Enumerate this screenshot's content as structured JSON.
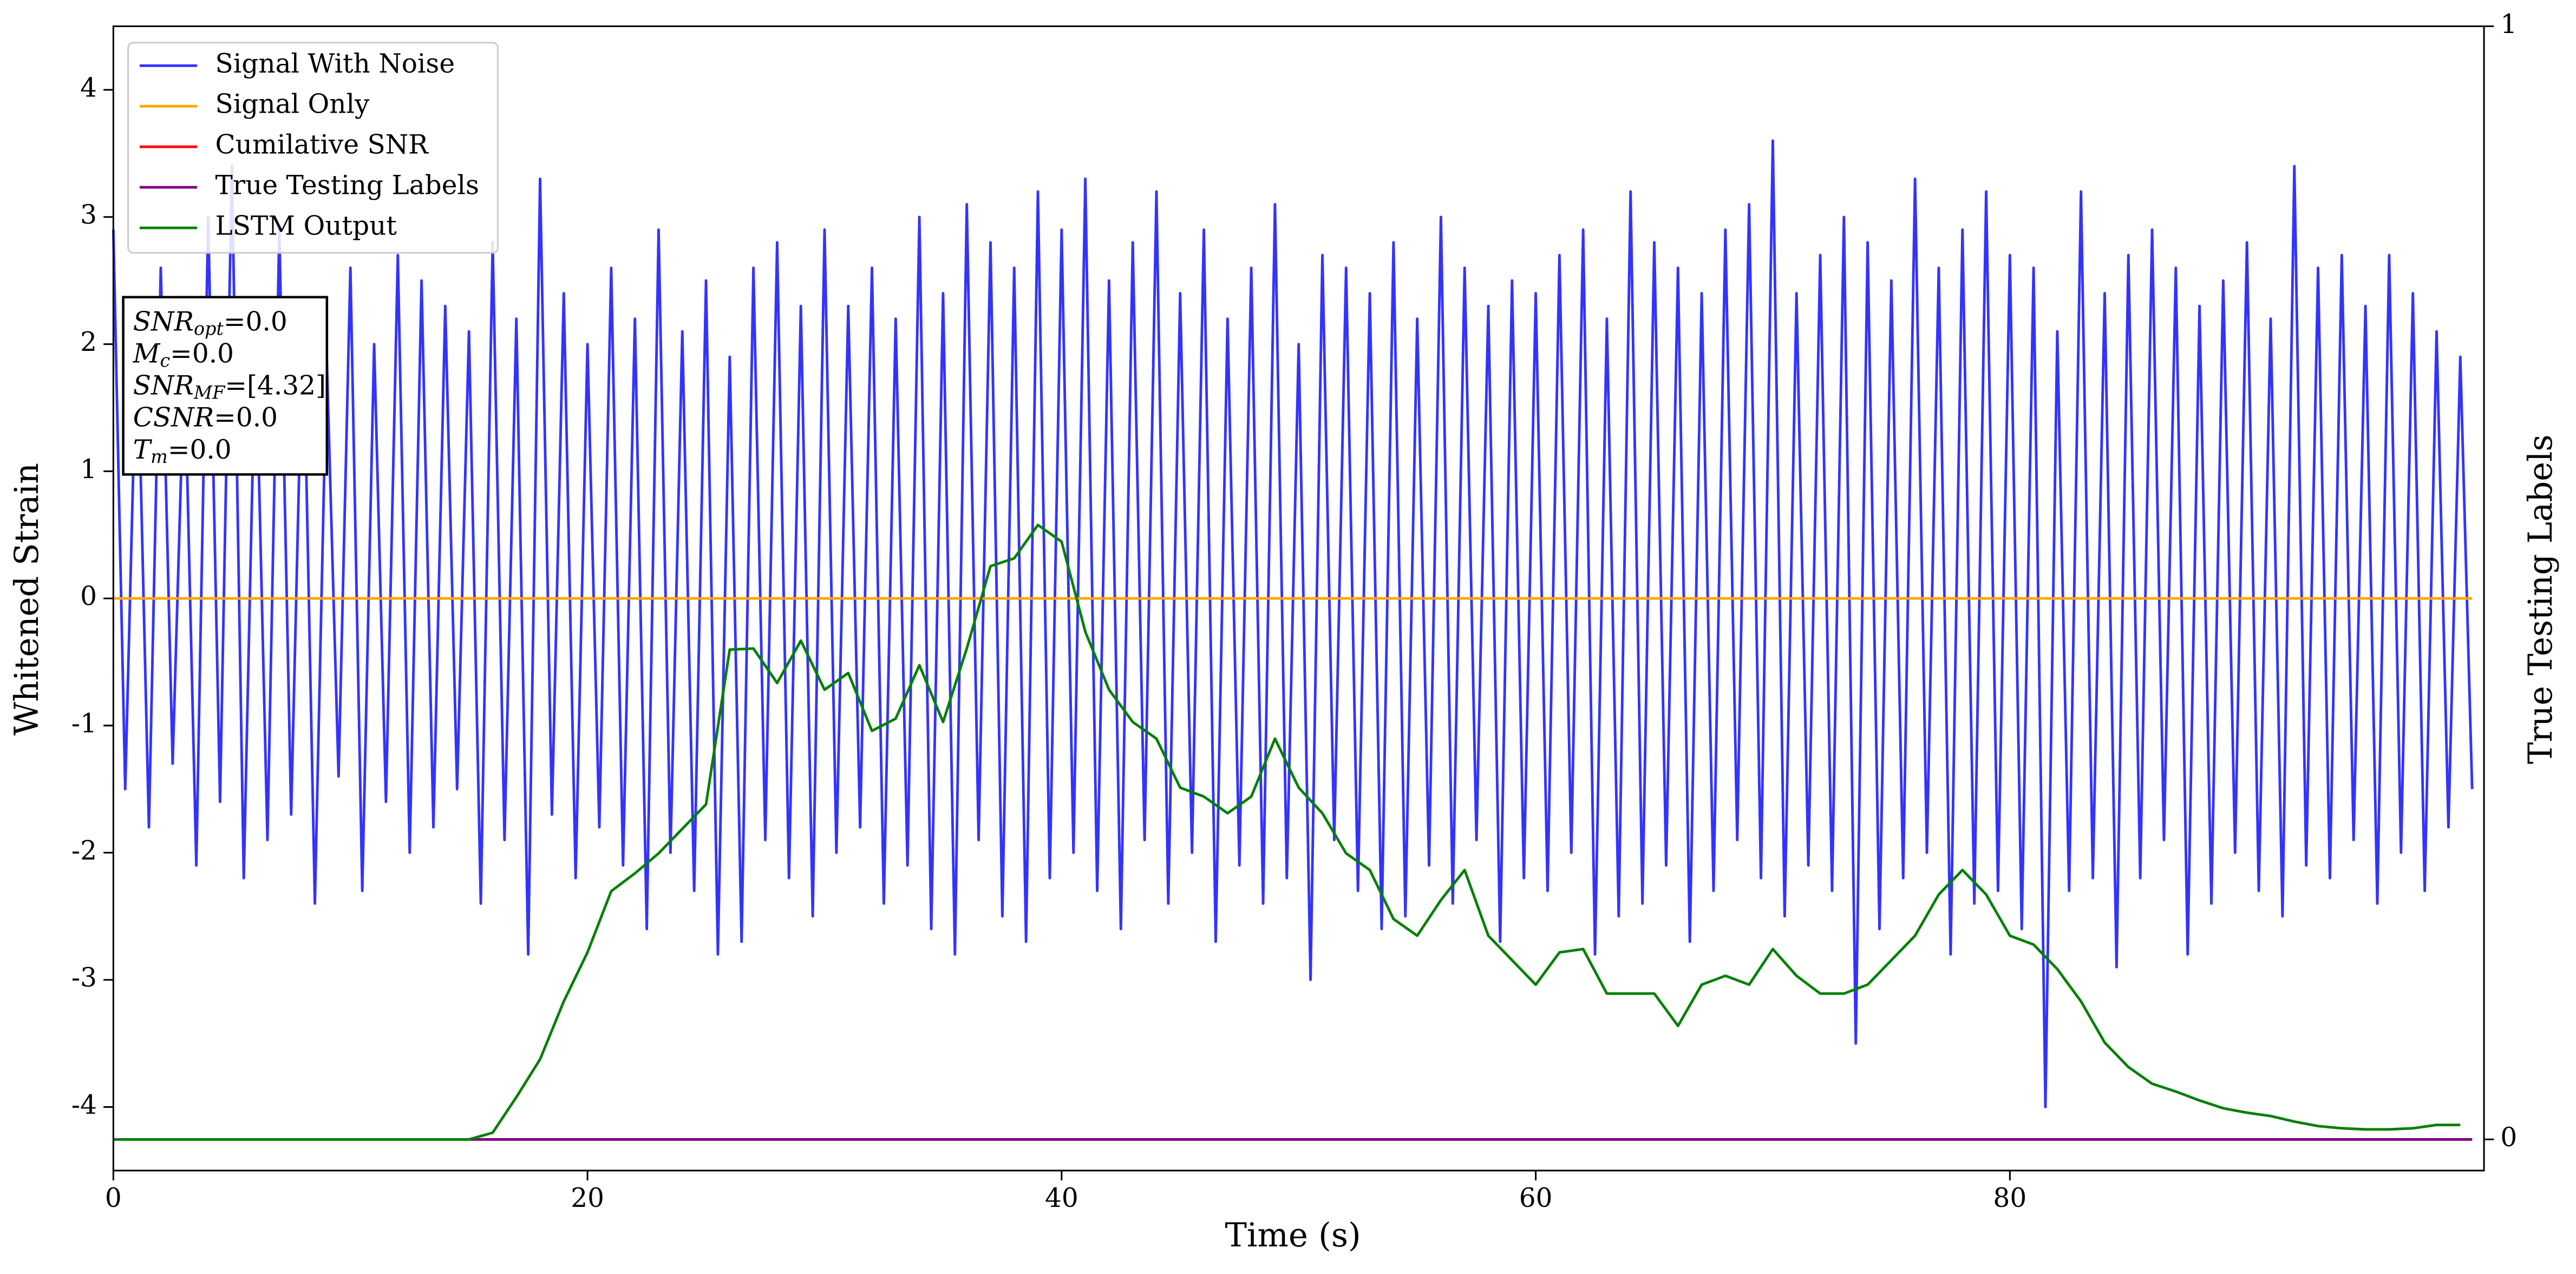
{
  "chart_data": {
    "type": "line",
    "xlabel": "Time (s)",
    "ylabel": "Whitened Strain",
    "y2label": "True Testing Labels",
    "xlim": [
      0,
      100
    ],
    "xticks": [
      0,
      20,
      40,
      60,
      80
    ],
    "ylim": [
      -4.5,
      4.5
    ],
    "yticks": [
      -4,
      -3,
      -2,
      -1,
      0,
      1,
      2,
      3,
      4
    ],
    "y2lim": [
      -0.028,
      1
    ],
    "y2ticks": [
      0,
      1
    ],
    "legend": "upper left",
    "annotations": [
      {
        "symbol": "SNR",
        "subscript": "opt",
        "text": "=0.0"
      },
      {
        "symbol": "M",
        "subscript": "c",
        "text": "=0.0"
      },
      {
        "symbol": "SNR",
        "subscript": "MF",
        "text": "=[4.32]"
      },
      {
        "symbol": "CSNR",
        "text": "=0.0"
      },
      {
        "symbol": "T",
        "subscript": "m",
        "text": "=0.0"
      }
    ],
    "series": [
      {
        "name": "Signal With Noise",
        "color": "#3333ff",
        "x": [
          0,
          0.5,
          1,
          1.5,
          2,
          2.5,
          3,
          3.5,
          4,
          4.5,
          5,
          5.5,
          6,
          6.5,
          7,
          7.5,
          8,
          8.5,
          9,
          9.5,
          10,
          10.5,
          11,
          11.5,
          12,
          12.5,
          13,
          13.5,
          14,
          14.5,
          15,
          15.5,
          16,
          16.5,
          17,
          17.5,
          18,
          18.5,
          19,
          19.5,
          20,
          20.5,
          21,
          21.5,
          22,
          22.5,
          23,
          23.5,
          24,
          24.5,
          25,
          25.5,
          26,
          26.5,
          27,
          27.5,
          28,
          28.5,
          29,
          29.5,
          30,
          30.5,
          31,
          31.5,
          32,
          32.5,
          33,
          33.5,
          34,
          34.5,
          35,
          35.5,
          36,
          36.5,
          37,
          37.5,
          38,
          38.5,
          39,
          39.5,
          40,
          40.5,
          41,
          41.5,
          42,
          42.5,
          43,
          43.5,
          44,
          44.5,
          45,
          45.5,
          46,
          46.5,
          47,
          47.5,
          48,
          48.5,
          49,
          49.5,
          50,
          50.5,
          51,
          51.5,
          52,
          52.5,
          53,
          53.5,
          54,
          54.5,
          55,
          55.5,
          56,
          56.5,
          57,
          57.5,
          58,
          58.5,
          59,
          59.5,
          60,
          60.5,
          61,
          61.5,
          62,
          62.5,
          63,
          63.5,
          64,
          64.5,
          65,
          65.5,
          66,
          66.5,
          67,
          67.5,
          68,
          68.5,
          69,
          69.5,
          70,
          70.5,
          71,
          71.5,
          72,
          72.5,
          73,
          73.5,
          74,
          74.5,
          75,
          75.5,
          76,
          76.5,
          77,
          77.5,
          78,
          78.5,
          79,
          79.5,
          80,
          80.5,
          81,
          81.5,
          82,
          82.5,
          83,
          83.5,
          84,
          84.5,
          85,
          85.5,
          86,
          86.5,
          87,
          87.5,
          88,
          88.5,
          89,
          89.5,
          90,
          90.5,
          91,
          91.5,
          92,
          92.5,
          93,
          93.5,
          94,
          94.5,
          95,
          95.5,
          96,
          96.5,
          97,
          97.5,
          98,
          98.5,
          99,
          99.5
        ],
        "values": [
          2.9,
          -1.5,
          2.2,
          -1.8,
          2.6,
          -1.3,
          1.9,
          -2.1,
          3.0,
          -1.6,
          3.4,
          -2.2,
          2.1,
          -1.9,
          2.9,
          -1.7,
          2.3,
          -2.4,
          1.9,
          -1.4,
          2.6,
          -2.3,
          2.0,
          -1.6,
          2.7,
          -2.0,
          2.5,
          -1.8,
          2.3,
          -1.5,
          2.1,
          -2.4,
          2.8,
          -1.9,
          2.2,
          -2.8,
          3.3,
          -1.7,
          2.4,
          -2.2,
          2.0,
          -1.8,
          2.6,
          -2.1,
          2.2,
          -2.6,
          2.9,
          -2.0,
          2.1,
          -2.3,
          2.5,
          -2.8,
          1.9,
          -2.7,
          2.6,
          -1.9,
          2.8,
          -2.2,
          2.3,
          -2.5,
          2.9,
          -2.0,
          2.3,
          -1.8,
          2.6,
          -2.4,
          2.2,
          -2.1,
          3.0,
          -2.6,
          2.4,
          -2.8,
          3.1,
          -1.9,
          2.8,
          -2.5,
          2.6,
          -2.7,
          3.2,
          -2.2,
          2.9,
          -2.0,
          3.3,
          -2.3,
          2.5,
          -2.6,
          2.8,
          -1.9,
          3.2,
          -2.4,
          2.4,
          -2.0,
          2.9,
          -2.7,
          2.2,
          -2.1,
          2.6,
          -2.4,
          3.1,
          -2.2,
          2.0,
          -3.0,
          2.7,
          -1.9,
          2.6,
          -2.3,
          2.4,
          -2.6,
          2.8,
          -2.5,
          2.2,
          -2.1,
          3.0,
          -2.4,
          2.6,
          -1.9,
          2.3,
          -2.7,
          2.5,
          -2.2,
          2.4,
          -2.3,
          2.7,
          -2.0,
          2.9,
          -2.8,
          2.2,
          -2.5,
          3.2,
          -2.4,
          2.8,
          -2.1,
          2.6,
          -2.7,
          2.4,
          -2.3,
          2.9,
          -1.9,
          3.1,
          -2.2,
          3.6,
          -2.5,
          2.4,
          -2.1,
          2.7,
          -2.3,
          3.0,
          -3.5,
          2.8,
          -2.6,
          2.5,
          -2.2,
          3.3,
          -2.0,
          2.6,
          -2.8,
          2.9,
          -2.4,
          3.2,
          -2.3,
          2.7,
          -2.6,
          2.6,
          -4.0,
          2.1,
          -2.3,
          3.2,
          -2.2,
          2.4,
          -2.9,
          2.7,
          -2.2,
          2.9,
          -1.9,
          2.6,
          -2.8,
          2.3,
          -2.4,
          2.5,
          -2.0,
          2.8,
          -2.3,
          2.2,
          -2.5,
          3.4,
          -2.1,
          2.6,
          -2.2,
          2.7,
          -1.9,
          2.3,
          -2.4,
          2.7,
          -2.0,
          2.4,
          -2.3,
          2.1,
          -1.8,
          1.9,
          -1.5
        ]
      },
      {
        "name": "Signal Only",
        "color": "#ffa500",
        "x": [
          0,
          99.5
        ],
        "values": [
          0,
          0
        ]
      },
      {
        "name": "Cumilative SNR",
        "color": "#ff0000",
        "axis": "y2",
        "x": [
          0,
          99.5
        ],
        "values": [
          0,
          0
        ]
      },
      {
        "name": "True Testing Labels",
        "color": "#800080",
        "axis": "y2",
        "x": [
          0,
          99.5
        ],
        "values": [
          0,
          0
        ]
      },
      {
        "name": "LSTM Output",
        "color": "#008000",
        "axis": "y2",
        "x": [
          0,
          15,
          16,
          17,
          18,
          19,
          20,
          21,
          22,
          23,
          24,
          25,
          26,
          27,
          28,
          29,
          30,
          31,
          32,
          33,
          34,
          35,
          36,
          37,
          38,
          39,
          40,
          41,
          42,
          43,
          44,
          45,
          46,
          47,
          48,
          49,
          50,
          51,
          52,
          53,
          54,
          55,
          56,
          57,
          58,
          59,
          60,
          61,
          62,
          63,
          64,
          65,
          66,
          67,
          68,
          69,
          70,
          71,
          72,
          73,
          74,
          75,
          76,
          77,
          78,
          79,
          80,
          81,
          82,
          83,
          84,
          85,
          86,
          87,
          88,
          89,
          90,
          91,
          92,
          93,
          94,
          95,
          96,
          97,
          98,
          99
        ],
        "values": [
          0,
          0,
          0.006,
          0.038,
          0.072,
          0.124,
          0.168,
          0.223,
          0.239,
          0.257,
          0.279,
          0.301,
          0.44,
          0.441,
          0.41,
          0.448,
          0.404,
          0.419,
          0.367,
          0.378,
          0.426,
          0.375,
          0.441,
          0.515,
          0.522,
          0.552,
          0.537,
          0.456,
          0.404,
          0.375,
          0.36,
          0.316,
          0.308,
          0.293,
          0.308,
          0.36,
          0.316,
          0.293,
          0.257,
          0.242,
          0.198,
          0.183,
          0.215,
          0.242,
          0.183,
          0.161,
          0.139,
          0.168,
          0.171,
          0.131,
          0.131,
          0.131,
          0.102,
          0.139,
          0.147,
          0.139,
          0.171,
          0.147,
          0.131,
          0.131,
          0.139,
          0.161,
          0.183,
          0.22,
          0.242,
          0.22,
          0.183,
          0.175,
          0.153,
          0.124,
          0.087,
          0.065,
          0.05,
          0.043,
          0.035,
          0.028,
          0.024,
          0.021,
          0.016,
          0.012,
          0.01,
          0.009,
          0.009,
          0.01,
          0.013,
          0.013
        ]
      }
    ]
  }
}
